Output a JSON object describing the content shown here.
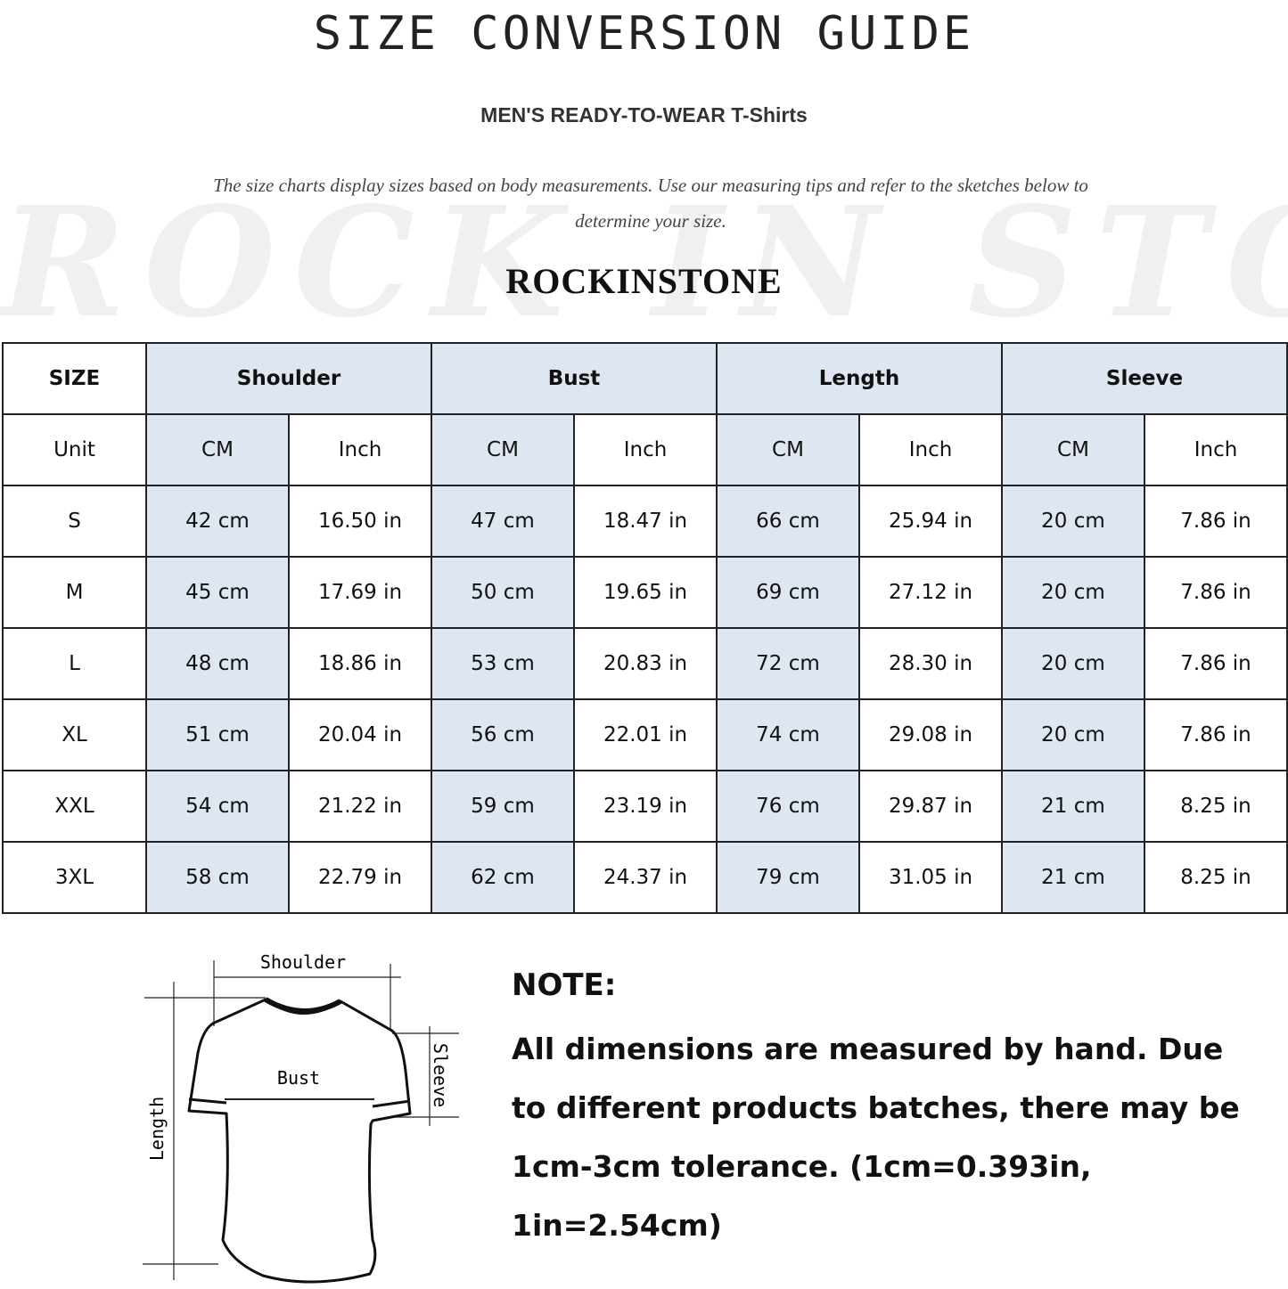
{
  "header": {
    "title": "SIZE CONVERSION GUIDE",
    "subtitle": "MEN'S READY-TO-WEAR T-Shirts",
    "description": "The size charts display sizes based on body measurements. Use our measuring tips and refer to the sketches below to determine your size.",
    "watermark": "ROCK IN STONE",
    "brand": "ROCKINSTONE"
  },
  "colors": {
    "header_fill": "#dde6f1",
    "border": "#222222"
  },
  "table": {
    "size_label": "SIZE",
    "unit_label": "Unit",
    "groups": [
      "Shoulder",
      "Bust",
      "Length",
      "Sleeve"
    ],
    "units": [
      "CM",
      "Inch",
      "CM",
      "Inch",
      "CM",
      "Inch",
      "CM",
      "Inch"
    ],
    "rows": [
      {
        "size": "S",
        "values": [
          "42 cm",
          "16.50 in",
          "47 cm",
          "18.47  in",
          "66 cm",
          "25.94  in",
          "20 cm",
          "7.86  in"
        ]
      },
      {
        "size": "M",
        "values": [
          "45 cm",
          "17.69  in",
          "50 cm",
          "19.65  in",
          "69 cm",
          "27.12  in",
          "20 cm",
          "7.86  in"
        ]
      },
      {
        "size": "L",
        "values": [
          "48 cm",
          "18.86  in",
          "53 cm",
          "20.83  in",
          "72 cm",
          "28.30  in",
          "20 cm",
          "7.86  in"
        ]
      },
      {
        "size": "XL",
        "values": [
          "51 cm",
          "20.04  in",
          "56 cm",
          "22.01  in",
          "74 cm",
          "29.08  in",
          "20 cm",
          "7.86  in"
        ]
      },
      {
        "size": "XXL",
        "values": [
          "54 cm",
          "21.22  in",
          "59 cm",
          "23.19  in",
          "76 cm",
          "29.87  in",
          "21 cm",
          "8.25  in"
        ]
      },
      {
        "size": "3XL",
        "values": [
          "58 cm",
          "22.79  in",
          "62 cm",
          "24.37  in",
          "79 cm",
          "31.05  in",
          "21 cm",
          "8.25  in"
        ]
      }
    ]
  },
  "diagram": {
    "shoulder": "Shoulder",
    "bust": "Bust",
    "sleeve": "Sleeve",
    "length": "Length"
  },
  "note": {
    "title": "NOTE:",
    "body": "All dimensions are measured by hand. Due to different products batches, there may be 1cm-3cm tolerance. (1cm=0.393in, 1in=2.54cm)"
  }
}
